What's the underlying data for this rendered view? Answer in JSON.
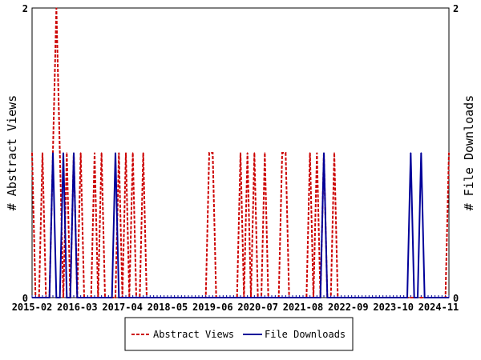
{
  "chart_data": {
    "type": "line",
    "x_tick_labels": [
      "2015-02",
      "2016-03",
      "2017-04",
      "2018-05",
      "2019-06",
      "2020-07",
      "2021-08",
      "2022-09",
      "2023-10",
      "2024-11"
    ],
    "x_range": [
      "2015-02",
      "2025-02"
    ],
    "ylabel_left": "# Abstract Views",
    "ylabel_right": "# File Downloads",
    "ylim_left": [
      0,
      2
    ],
    "ylim_right": [
      0,
      2
    ],
    "y_ticks_left": [
      "0",
      "2"
    ],
    "y_ticks_right": [
      "0",
      "2"
    ],
    "grid": false,
    "legend_position": "bottom-center",
    "series": [
      {
        "name": "Abstract Views",
        "color": "#cc0000",
        "style": "dashed",
        "axis": "left",
        "points": [
          [
            "2015-02",
            1
          ],
          [
            "2015-03",
            0
          ],
          [
            "2015-04",
            0
          ],
          [
            "2015-05",
            1
          ],
          [
            "2015-06",
            0
          ],
          [
            "2015-07",
            0
          ],
          [
            "2015-08",
            1
          ],
          [
            "2015-09",
            2
          ],
          [
            "2015-10",
            1
          ],
          [
            "2015-11",
            0
          ],
          [
            "2015-12",
            1
          ],
          [
            "2016-01",
            0
          ],
          [
            "2016-02",
            1
          ],
          [
            "2016-03",
            0
          ],
          [
            "2016-04",
            1
          ],
          [
            "2016-05",
            0
          ],
          [
            "2016-06",
            0
          ],
          [
            "2016-07",
            0
          ],
          [
            "2016-08",
            1
          ],
          [
            "2016-09",
            0
          ],
          [
            "2016-10",
            1
          ],
          [
            "2016-11",
            0
          ],
          [
            "2016-12",
            0
          ],
          [
            "2017-01",
            0
          ],
          [
            "2017-02",
            0
          ],
          [
            "2017-03",
            1
          ],
          [
            "2017-04",
            0
          ],
          [
            "2017-05",
            1
          ],
          [
            "2017-06",
            0
          ],
          [
            "2017-07",
            1
          ],
          [
            "2017-08",
            0
          ],
          [
            "2017-09",
            0
          ],
          [
            "2017-10",
            1
          ],
          [
            "2017-11",
            0
          ],
          [
            "2019-04",
            0
          ],
          [
            "2019-05",
            1
          ],
          [
            "2019-06",
            1
          ],
          [
            "2019-07",
            0
          ],
          [
            "2020-01",
            0
          ],
          [
            "2020-02",
            1
          ],
          [
            "2020-03",
            0
          ],
          [
            "2020-04",
            1
          ],
          [
            "2020-05",
            0
          ],
          [
            "2020-06",
            1
          ],
          [
            "2020-07",
            0
          ],
          [
            "2020-08",
            0
          ],
          [
            "2020-09",
            1
          ],
          [
            "2020-10",
            0
          ],
          [
            "2021-01",
            0
          ],
          [
            "2021-02",
            1
          ],
          [
            "2021-03",
            1
          ],
          [
            "2021-04",
            0
          ],
          [
            "2021-09",
            0
          ],
          [
            "2021-10",
            1
          ],
          [
            "2021-11",
            0
          ],
          [
            "2021-12",
            1
          ],
          [
            "2022-01",
            0
          ],
          [
            "2022-02",
            1
          ],
          [
            "2022-03",
            0
          ],
          [
            "2022-04",
            0
          ],
          [
            "2022-05",
            1
          ],
          [
            "2022-06",
            0
          ],
          [
            "2025-01",
            0
          ],
          [
            "2025-02",
            1
          ]
        ]
      },
      {
        "name": "File Downloads",
        "color": "#000099",
        "style": "solid",
        "axis": "right",
        "points": [
          [
            "2015-02",
            0
          ],
          [
            "2015-07",
            0
          ],
          [
            "2015-08",
            1
          ],
          [
            "2015-09",
            0
          ],
          [
            "2015-10",
            0
          ],
          [
            "2015-11",
            1
          ],
          [
            "2015-12",
            0
          ],
          [
            "2016-01",
            0
          ],
          [
            "2016-02",
            1
          ],
          [
            "2016-03",
            0
          ],
          [
            "2017-01",
            0
          ],
          [
            "2017-02",
            1
          ],
          [
            "2017-03",
            0
          ],
          [
            "2022-01",
            0
          ],
          [
            "2022-02",
            1
          ],
          [
            "2022-03",
            0
          ],
          [
            "2024-02",
            0
          ],
          [
            "2024-03",
            1
          ],
          [
            "2024-04",
            0
          ],
          [
            "2024-05",
            0
          ],
          [
            "2024-06",
            1
          ],
          [
            "2024-07",
            0
          ],
          [
            "2025-02",
            0
          ]
        ]
      }
    ]
  }
}
